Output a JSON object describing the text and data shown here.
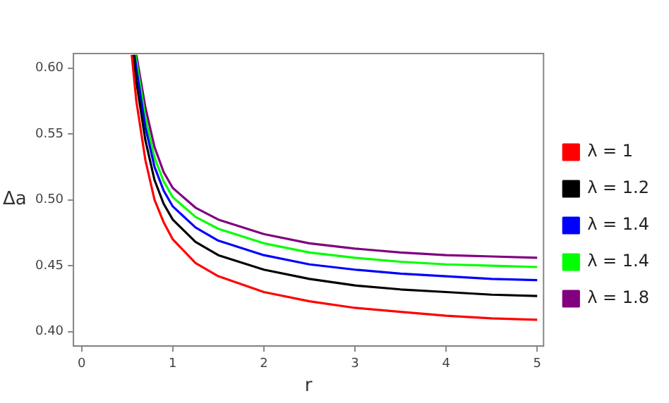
{
  "chart_data": {
    "type": "line",
    "xlabel": "r",
    "ylabel": "Δa",
    "xlim": [
      -0.09,
      5.07
    ],
    "ylim": [
      0.389,
      0.611
    ],
    "xticks": [
      0,
      1,
      2,
      3,
      4,
      5
    ],
    "yticks": [
      {
        "value": 0.4,
        "label": "0.40"
      },
      {
        "value": 0.45,
        "label": "0.45"
      },
      {
        "value": 0.5,
        "label": "0.50"
      },
      {
        "value": 0.55,
        "label": "0.55"
      },
      {
        "value": 0.6,
        "label": "0.60"
      }
    ],
    "grid": false,
    "legend": "right",
    "marker": "none",
    "line_style": "solid",
    "series": [
      {
        "name": "λ = 1",
        "color": "#ff0000",
        "x": [
          0.55,
          0.6,
          0.7,
          0.8,
          0.9,
          1,
          1.25,
          1.5,
          2,
          2.5,
          3,
          3.5,
          4,
          4.5,
          5
        ],
        "values": [
          0.61,
          0.575,
          0.53,
          0.5,
          0.483,
          0.47,
          0.452,
          0.442,
          0.43,
          0.423,
          0.418,
          0.415,
          0.412,
          0.41,
          0.409
        ]
      },
      {
        "name": "λ = 1.2",
        "color": "#000000",
        "x": [
          0.57,
          0.6,
          0.7,
          0.8,
          0.9,
          1,
          1.25,
          1.5,
          2,
          2.5,
          3,
          3.5,
          4,
          4.5,
          5
        ],
        "values": [
          0.61,
          0.59,
          0.545,
          0.515,
          0.497,
          0.485,
          0.468,
          0.458,
          0.447,
          0.44,
          0.435,
          0.432,
          0.43,
          0.428,
          0.427
        ]
      },
      {
        "name": "λ = 1.4",
        "color": "#0000ff",
        "x": [
          0.58,
          0.6,
          0.7,
          0.8,
          0.9,
          1,
          1.25,
          1.5,
          2,
          2.5,
          3,
          3.5,
          4,
          4.5,
          5
        ],
        "values": [
          0.61,
          0.6,
          0.555,
          0.525,
          0.507,
          0.495,
          0.479,
          0.469,
          0.458,
          0.451,
          0.447,
          0.444,
          0.442,
          0.44,
          0.439
        ]
      },
      {
        "name": "λ = 1.4",
        "color": "#00ff00",
        "x": [
          0.59,
          0.7,
          0.8,
          0.9,
          1,
          1.25,
          1.5,
          2,
          2.5,
          3,
          3.5,
          4,
          4.5,
          5
        ],
        "values": [
          0.61,
          0.562,
          0.532,
          0.514,
          0.502,
          0.487,
          0.478,
          0.467,
          0.46,
          0.456,
          0.453,
          0.451,
          0.45,
          0.449
        ]
      },
      {
        "name": "λ = 1.8",
        "color": "#800080",
        "x": [
          0.6,
          0.7,
          0.8,
          0.9,
          1,
          1.25,
          1.5,
          2,
          2.5,
          3,
          3.5,
          4,
          4.5,
          5
        ],
        "values": [
          0.61,
          0.57,
          0.54,
          0.521,
          0.509,
          0.494,
          0.485,
          0.474,
          0.467,
          0.463,
          0.46,
          0.458,
          0.457,
          0.456
        ]
      }
    ]
  }
}
